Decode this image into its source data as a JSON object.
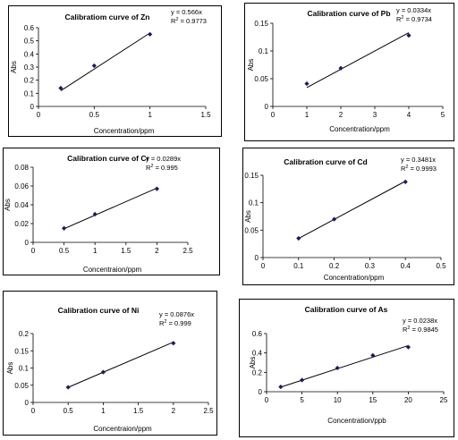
{
  "chart_data": [
    {
      "type": "scatter",
      "title": "Calibratiom curve of Zn",
      "xlabel": "Concentration/ppm",
      "ylabel": "Abs",
      "xlim": [
        0,
        1.5
      ],
      "ylim": [
        0,
        0.6
      ],
      "x_ticks": [
        "0",
        "0.5",
        "1",
        "1.5"
      ],
      "y_ticks": [
        "0",
        "0.1",
        "0.2",
        "0.3",
        "0.4",
        "0.5",
        "0.6"
      ],
      "equation": "y = 0.566x",
      "r2_label": "R",
      "r2_value": " = 0.9773",
      "x": [
        0.2,
        0.5,
        1.0
      ],
      "y": [
        0.14,
        0.31,
        0.55
      ],
      "trend": {
        "x": [
          0.2,
          1.0
        ],
        "y": [
          0.12,
          0.56
        ]
      }
    },
    {
      "type": "scatter",
      "title": "Calibration curve of Pb",
      "xlabel": "Concentration/ppm",
      "ylabel": "Abs",
      "xlim": [
        0,
        5
      ],
      "ylim": [
        0,
        0.15
      ],
      "x_ticks": [
        "0",
        "1",
        "2",
        "3",
        "4",
        "5"
      ],
      "y_ticks": [
        "0",
        "0.05",
        "0.1",
        "0.15"
      ],
      "equation": "y = 0.0334x",
      "r2_label": "R",
      "r2_value": " = 0.9734",
      "x": [
        1,
        2,
        4
      ],
      "y": [
        0.041,
        0.069,
        0.128
      ],
      "trend": {
        "x": [
          1,
          4
        ],
        "y": [
          0.034,
          0.133
        ]
      }
    },
    {
      "type": "scatter",
      "title": "Calibration curve of Cr",
      "xlabel": "Concentraion/ppm",
      "ylabel": "Abs",
      "xlim": [
        0,
        2.5
      ],
      "ylim": [
        0,
        0.08
      ],
      "x_ticks": [
        "0",
        "0.5",
        "1",
        "1.5",
        "2",
        "2.5"
      ],
      "y_ticks": [
        "0",
        "0.02",
        "0.04",
        "0.06",
        "0.08"
      ],
      "equation": "y = 0.0289x",
      "r2_label": "R",
      "r2_value": " = 0.995",
      "x": [
        0.5,
        1.0,
        2.0
      ],
      "y": [
        0.015,
        0.03,
        0.057
      ],
      "trend": {
        "x": [
          0.5,
          2.0
        ],
        "y": [
          0.0145,
          0.0578
        ]
      }
    },
    {
      "type": "scatter",
      "title": "Calibration curve of Cd",
      "xlabel": "Concentration/ppm",
      "ylabel": "Abs",
      "xlim": [
        0,
        0.5
      ],
      "ylim": [
        0,
        0.15
      ],
      "x_ticks": [
        "0",
        "0.1",
        "0.2",
        "0.3",
        "0.4",
        "0.5"
      ],
      "y_ticks": [
        "0",
        "0.05",
        "0.1",
        "0.15"
      ],
      "equation": "y = 0.3481x",
      "r2_label": "R",
      "r2_value": " = 0.9993",
      "x": [
        0.1,
        0.2,
        0.4
      ],
      "y": [
        0.035,
        0.07,
        0.138
      ],
      "trend": {
        "x": [
          0.1,
          0.4
        ],
        "y": [
          0.0348,
          0.1392
        ]
      }
    },
    {
      "type": "scatter",
      "title": "Calibration curve of Ni",
      "xlabel": "Concentraion/ppm",
      "ylabel": "Abs",
      "xlim": [
        0,
        2.5
      ],
      "ylim": [
        0,
        0.2
      ],
      "x_ticks": [
        "0",
        "0.5",
        "1",
        "1.5",
        "2",
        "2.5"
      ],
      "y_ticks": [
        "0",
        "0.05",
        "0.1",
        "0.15",
        "0.2"
      ],
      "equation": "y = 0.0876x",
      "r2_label": "R",
      "r2_value": " = 0.999",
      "x": [
        0.5,
        1.0,
        2.0
      ],
      "y": [
        0.044,
        0.088,
        0.172
      ],
      "trend": {
        "x": [
          0.5,
          2.0
        ],
        "y": [
          0.0438,
          0.1752
        ]
      }
    },
    {
      "type": "scatter",
      "title": "Calibration curve of As",
      "xlabel": "Concentration/ppb",
      "ylabel": "Abs",
      "xlim": [
        0,
        25
      ],
      "ylim": [
        0,
        0.6
      ],
      "x_ticks": [
        "0",
        "5",
        "10",
        "15",
        "20",
        "25"
      ],
      "y_ticks": [
        "0",
        "0.2",
        "0.4",
        "0.6"
      ],
      "equation": "y = 0.0238x",
      "r2_label": "R",
      "r2_value": " = 0.9845",
      "x": [
        2,
        5,
        10,
        15,
        20
      ],
      "y": [
        0.05,
        0.12,
        0.245,
        0.375,
        0.46
      ],
      "trend": {
        "x": [
          2,
          20
        ],
        "y": [
          0.0476,
          0.476
        ]
      }
    }
  ],
  "colors": {
    "marker": "#1a1a5e",
    "line": "#000000",
    "frame": "#000000"
  }
}
